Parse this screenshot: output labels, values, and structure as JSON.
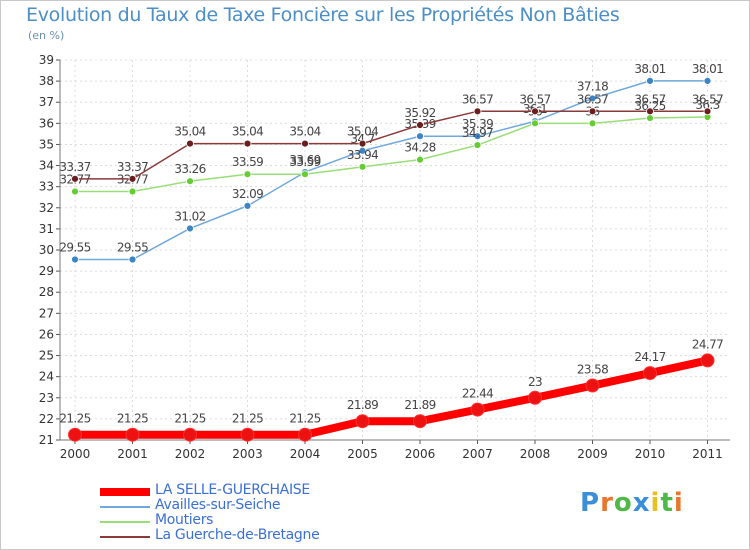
{
  "header": {
    "title": "Evolution du Taux de Taxe Foncière sur les Propriétés Non Bâties",
    "subtitle": "(en %)"
  },
  "logo": {
    "text": "Proxiti",
    "colors": [
      "#3a8fd6",
      "#e8762d",
      "#4fb848",
      "#3a8fd6",
      "#e8c020",
      "#4fb848",
      "#e8762d"
    ]
  },
  "chart_data": {
    "type": "line",
    "categories": [
      "2000",
      "2001",
      "2002",
      "2003",
      "2004",
      "2005",
      "2006",
      "2007",
      "2008",
      "2009",
      "2010",
      "2011"
    ],
    "ylim": [
      21,
      39
    ],
    "yticks": [
      "21",
      "22",
      "23",
      "24",
      "25",
      "26",
      "27",
      "28",
      "29",
      "30",
      "31",
      "32",
      "33",
      "34",
      "35",
      "36",
      "37",
      "38",
      "39"
    ],
    "grid": true,
    "legend_position": "bottom-left",
    "series": [
      {
        "name": "LA SELLE-GUERCHAISE",
        "color": "#ff0000",
        "emphasis": true,
        "values": [
          21.25,
          21.25,
          21.25,
          21.25,
          21.25,
          21.89,
          21.89,
          22.44,
          23,
          23.58,
          24.17,
          24.77
        ],
        "labels": [
          "21.25",
          "21.25",
          "21.25",
          "21.25",
          "21.25",
          "21.89",
          "21.89",
          "22.44",
          "23",
          "23.58",
          "24.17",
          "24.77"
        ]
      },
      {
        "name": "Availles-sur-Seiche",
        "color": "#6fa8dc",
        "marker": "#3d85c6",
        "values": [
          29.55,
          29.55,
          31.02,
          32.09,
          33.69,
          34.7,
          35.39,
          35.39,
          36.1,
          37.18,
          38.01,
          38.01
        ],
        "labels": [
          "29.55",
          "29.55",
          "31.02",
          "32.09",
          "33.69",
          "34.7",
          "35.39",
          "35.39",
          "36.1",
          "37.18",
          "38.01",
          "38.01"
        ]
      },
      {
        "name": "Moutiers",
        "color": "#99dd77",
        "marker": "#66cc33",
        "values": [
          32.77,
          32.77,
          33.26,
          33.59,
          33.59,
          33.94,
          34.28,
          34.97,
          36,
          36,
          36.25,
          36.3
        ],
        "labels": [
          "32.77",
          "32.77",
          "33.26",
          "33.59",
          "33.59",
          "33.94",
          "34.28",
          "34.97",
          "36",
          "36",
          "36.25",
          "36.3"
        ]
      },
      {
        "name": "La Guerche-de-Bretagne",
        "color": "#8b3a3a",
        "marker": "#6a1e1e",
        "values": [
          33.37,
          33.37,
          35.04,
          35.04,
          35.04,
          35.04,
          35.92,
          36.57,
          36.57,
          36.57,
          36.57,
          36.57
        ],
        "labels": [
          "33.37",
          "33.37",
          "35.04",
          "35.04",
          "35.04",
          "35.04",
          "35.92",
          "36.57",
          "36.57",
          "36.57",
          "36.57",
          "36.57"
        ]
      }
    ]
  }
}
